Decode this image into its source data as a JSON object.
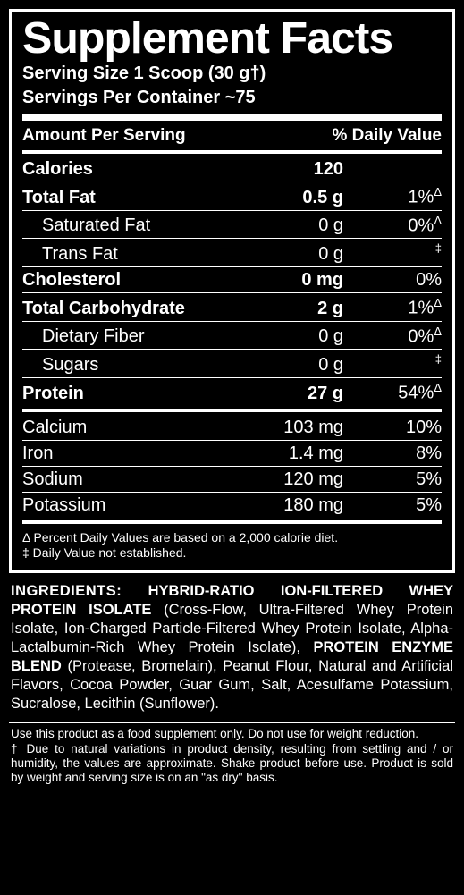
{
  "title": "Supplement Facts",
  "serving_size_line": "Serving Size 1 Scoop  (30 g†)",
  "servings_per_container_line": "Servings Per Container ~75",
  "header": {
    "amount": "Amount Per Serving",
    "dv": "% Daily Value"
  },
  "rows": [
    {
      "name": "Calories",
      "amount": "120",
      "dv": "",
      "bold": true,
      "indent": false,
      "divider": "thin"
    },
    {
      "name": "Total Fat",
      "amount": "0.5 g",
      "dv": "1%Δ",
      "bold": true,
      "indent": false,
      "divider": "thin"
    },
    {
      "name": "Saturated Fat",
      "amount": "0 g",
      "dv": "0%Δ",
      "bold": false,
      "indent": true,
      "divider": "thin"
    },
    {
      "name": "Trans Fat",
      "amount": "0 g",
      "dv": "‡",
      "bold": false,
      "indent": true,
      "divider": "thin"
    },
    {
      "name": "Cholesterol",
      "amount": "0 mg",
      "dv": "0%",
      "bold": true,
      "indent": false,
      "divider": "thin"
    },
    {
      "name": "Total Carbohydrate",
      "amount": "2 g",
      "dv": "1%Δ",
      "bold": true,
      "indent": false,
      "divider": "thin"
    },
    {
      "name": "Dietary Fiber",
      "amount": "0 g",
      "dv": "0%Δ",
      "bold": false,
      "indent": true,
      "divider": "thin"
    },
    {
      "name": "Sugars",
      "amount": "0 g",
      "dv": "‡",
      "bold": false,
      "indent": true,
      "divider": "thin"
    },
    {
      "name": "Protein",
      "amount": "27 g",
      "dv": "54%Δ",
      "bold": true,
      "indent": false,
      "divider": "med"
    },
    {
      "name": "Calcium",
      "amount": "103 mg",
      "dv": "10%",
      "bold": false,
      "indent": false,
      "divider": "thin"
    },
    {
      "name": "Iron",
      "amount": "1.4 mg",
      "dv": "8%",
      "bold": false,
      "indent": false,
      "divider": "thin"
    },
    {
      "name": "Sodium",
      "amount": "120 mg",
      "dv": "5%",
      "bold": false,
      "indent": false,
      "divider": "thin"
    },
    {
      "name": "Potassium",
      "amount": "180 mg",
      "dv": "5%",
      "bold": false,
      "indent": false,
      "divider": "med"
    }
  ],
  "footnote1": "Δ Percent Daily Values are based on a 2,000 calorie diet.",
  "footnote2": "‡ Daily Value not established.",
  "ingredients": {
    "lead": "INGREDIENTS:",
    "part1_bold": "HYBRID-RATIO ION-FILTERED WHEY PROTEIN ISOLATE",
    "part1_rest": " (Cross-Flow, Ultra-Filtered Whey Protein Isolate, Ion-Charged Particle-Filtered Whey Protein Isolate, Alpha-Lactalbumin-Rich Whey Protein Isolate), ",
    "part2_bold": "PROTEIN ENZYME BLEND",
    "part2_rest": " (Protease, Bromelain), Peanut Flour, Natural and Artificial Flavors, Cocoa Powder, Guar Gum, Salt, Acesulfame Potassium, Sucralose, Lecithin (Sunflower)."
  },
  "disclaimer_line1": "Use this product as a food supplement only. Do not use for weight reduction.",
  "disclaimer_line2": "† Due to natural variations in product density, resulting from settling and / or humidity, the values are approximate. Shake product before use. Product is sold by weight and serving size is on an \"as dry\" basis.",
  "style": {
    "bg": "#000000",
    "fg": "#ffffff",
    "title_fontsize": 49,
    "serving_fontsize": 20,
    "row_fontsize": 20,
    "footnote_fontsize": 14,
    "ingredients_fontsize": 16.5,
    "disclaimer_fontsize": 13.5,
    "border_width": 3,
    "hr_thick": 7,
    "hr_med": 4,
    "hr_thin": 1
  }
}
